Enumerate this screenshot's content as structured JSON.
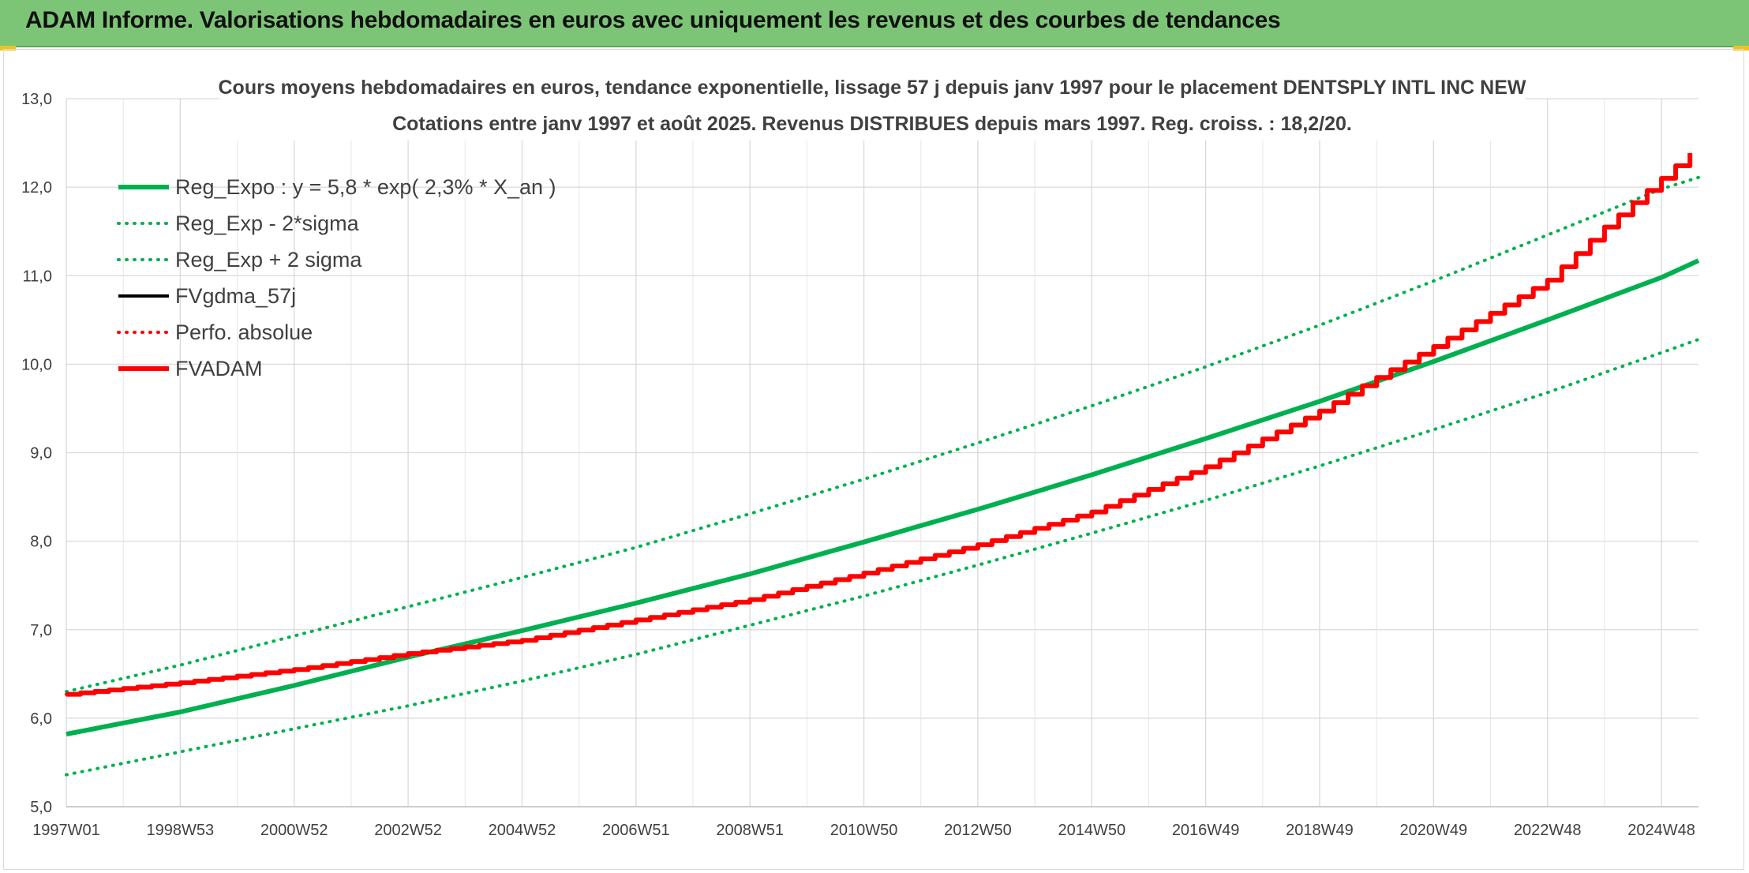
{
  "header": {
    "title": "ADAM Informe. Valorisations hebdomadaires en euros avec uniquement les revenus et des courbes de tendances"
  },
  "chart_data": {
    "type": "line",
    "title": "Cours moyens hebdomadaires en euros, tendance exponentielle, lissage 57 j depuis janv 1997 pour le placement DENTSPLY INTL INC NEW",
    "subtitle": "Cotations entre janv 1997 et août 2025. Revenus DISTRIBUES depuis mars 1997. Reg. croiss. : 18,2/20.",
    "xlabel": "",
    "ylabel": "",
    "ylim": [
      5.0,
      13.0
    ],
    "y_ticks": [
      "5,0",
      "6,0",
      "7,0",
      "8,0",
      "9,0",
      "10,0",
      "11,0",
      "12,0",
      "13,0"
    ],
    "x_range": [
      1997.0,
      2025.65
    ],
    "x_tick_labels": [
      "1997W01",
      "1998W53",
      "2000W52",
      "2002W52",
      "2004W52",
      "2006W51",
      "2008W51",
      "2010W50",
      "2012W50",
      "2014W50",
      "2016W49",
      "2018W49",
      "2020W49",
      "2022W48",
      "2024W48"
    ],
    "x_tick_values": [
      1997.0,
      1999.0,
      2001.0,
      2003.0,
      2005.0,
      2007.0,
      2009.0,
      2011.0,
      2013.0,
      2015.0,
      2017.0,
      2019.0,
      2021.0,
      2023.0,
      2025.0
    ],
    "grid": true,
    "legend_position": "top-left",
    "series": [
      {
        "name": "Reg_Expo : y = 5,8 * exp( 2,3% *  X_an )",
        "color": "#00b050",
        "style": "solid-thick",
        "x": [
          1997.0,
          1999.0,
          2001.0,
          2003.0,
          2005.0,
          2007.0,
          2009.0,
          2011.0,
          2013.0,
          2015.0,
          2017.0,
          2019.0,
          2021.0,
          2023.0,
          2025.0,
          2025.65
        ],
        "y": [
          5.82,
          6.07,
          6.37,
          6.69,
          6.99,
          7.3,
          7.63,
          7.99,
          8.36,
          8.75,
          9.16,
          9.58,
          10.03,
          10.5,
          10.98,
          11.17
        ]
      },
      {
        "name": "Reg_Exp - 2*sigma",
        "color": "#00b050",
        "style": "dotted",
        "x": [
          1997.0,
          1999.0,
          2001.0,
          2003.0,
          2005.0,
          2007.0,
          2009.0,
          2011.0,
          2013.0,
          2015.0,
          2017.0,
          2019.0,
          2021.0,
          2023.0,
          2025.0,
          2025.65
        ],
        "y": [
          5.36,
          5.62,
          5.88,
          6.14,
          6.42,
          6.72,
          7.05,
          7.38,
          7.73,
          8.09,
          8.46,
          8.85,
          9.26,
          9.68,
          10.13,
          10.28
        ]
      },
      {
        "name": "Reg_Exp + 2 sigma",
        "color": "#00b050",
        "style": "dotted",
        "x": [
          1997.0,
          1999.0,
          2001.0,
          2003.0,
          2005.0,
          2007.0,
          2009.0,
          2011.0,
          2013.0,
          2015.0,
          2017.0,
          2019.0,
          2021.0,
          2023.0,
          2025.0,
          2025.65
        ],
        "y": [
          6.3,
          6.6,
          6.93,
          7.26,
          7.59,
          7.93,
          8.31,
          8.7,
          9.11,
          9.53,
          9.97,
          10.44,
          10.94,
          11.46,
          11.98,
          12.11
        ]
      },
      {
        "name": "FVgdma_57j",
        "color": "#000000",
        "style": "solid",
        "x": [
          1997.0,
          1999.0,
          2001.0,
          2003.0,
          2005.0,
          2007.0,
          2009.0,
          2011.0,
          2013.0,
          2015.0,
          2017.0,
          2019.0,
          2020.0,
          2021.0,
          2023.0,
          2024.0,
          2025.0,
          2025.65
        ],
        "y": [
          6.27,
          6.4,
          6.55,
          6.73,
          6.88,
          7.11,
          7.34,
          7.64,
          7.96,
          8.33,
          8.84,
          9.47,
          9.85,
          10.2,
          10.95,
          11.55,
          12.1,
          12.47
        ]
      },
      {
        "name": "Perfo. absolue",
        "color": "#ff0000",
        "style": "dotted",
        "x": [
          1997.0,
          1999.0,
          2001.0,
          2003.0,
          2005.0,
          2007.0,
          2009.0,
          2011.0,
          2013.0,
          2015.0,
          2017.0,
          2019.0,
          2020.0,
          2021.0,
          2023.0,
          2024.0,
          2025.0,
          2025.65
        ],
        "y": [
          6.27,
          6.4,
          6.55,
          6.73,
          6.88,
          7.11,
          7.34,
          7.64,
          7.96,
          8.33,
          8.84,
          9.47,
          9.85,
          10.2,
          10.95,
          11.55,
          12.1,
          12.47
        ]
      },
      {
        "name": "FVADAM",
        "color": "#ff0000",
        "style": "solid-thick",
        "x": [
          1997.0,
          1999.0,
          2001.0,
          2003.0,
          2005.0,
          2007.0,
          2009.0,
          2011.0,
          2013.0,
          2015.0,
          2017.0,
          2019.0,
          2020.0,
          2021.0,
          2023.0,
          2024.0,
          2025.0,
          2025.65
        ],
        "y": [
          6.27,
          6.4,
          6.55,
          6.73,
          6.88,
          7.11,
          7.34,
          7.64,
          7.96,
          8.33,
          8.84,
          9.47,
          9.85,
          10.2,
          10.95,
          11.55,
          12.1,
          12.47
        ]
      }
    ]
  }
}
